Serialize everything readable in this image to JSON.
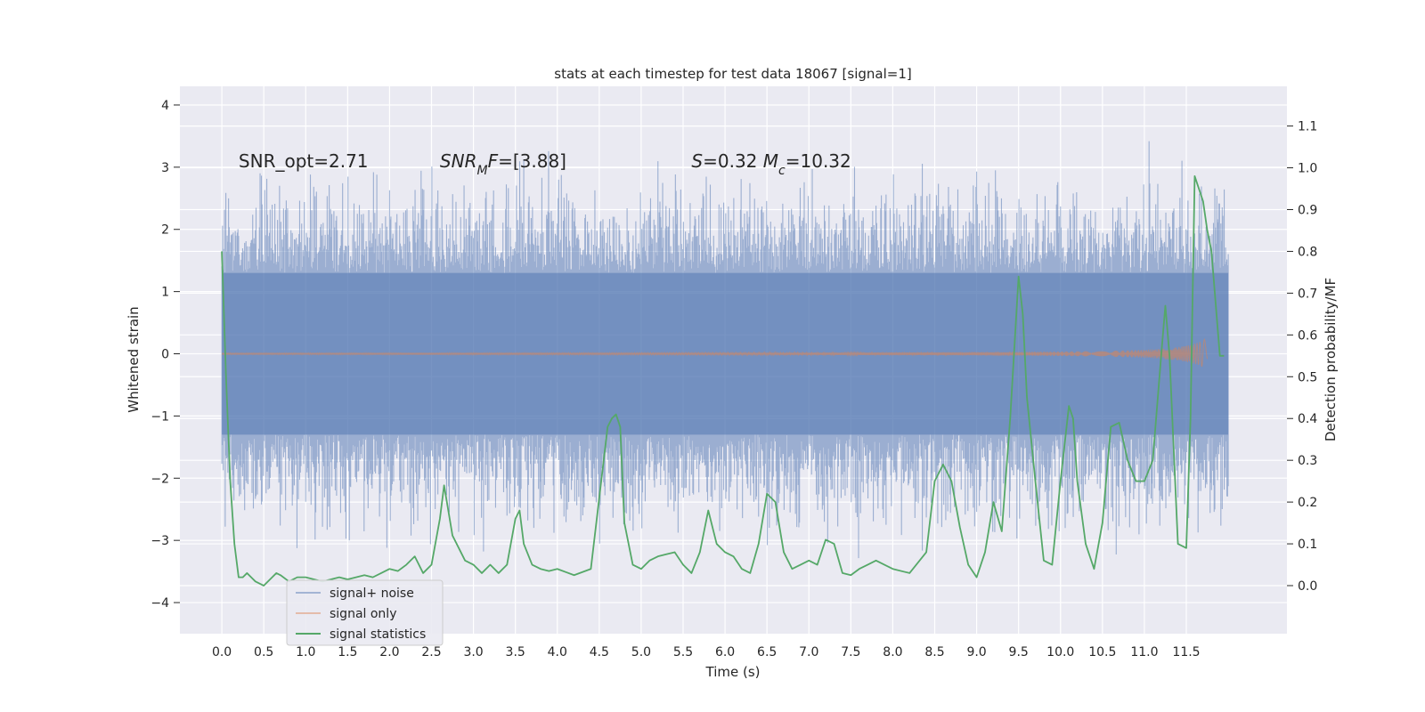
{
  "chart_data": {
    "type": "line",
    "title": "stats at each timestep for test data 18067 [signal=1]",
    "xlabel": "Time (s)",
    "ylabel": "Whitened strain",
    "y2label": "Detection probability/MF",
    "xlim": [
      -0.5,
      12.7
    ],
    "ylim": [
      -4.5,
      4.3
    ],
    "y2lim": [
      -0.115,
      1.195
    ],
    "xticks": [
      0.0,
      0.5,
      1.0,
      1.5,
      2.0,
      2.5,
      3.0,
      3.5,
      4.0,
      4.5,
      5.0,
      5.5,
      6.0,
      6.5,
      7.0,
      7.5,
      8.0,
      8.5,
      9.0,
      9.5,
      10.0,
      10.5,
      11.0,
      11.5
    ],
    "xtick_labels": [
      "0.0",
      "0.5",
      "1.0",
      "1.5",
      "2.0",
      "2.5",
      "3.0",
      "3.5",
      "4.0",
      "4.5",
      "5.0",
      "5.5",
      "6.0",
      "6.5",
      "7.0",
      "7.5",
      "8.0",
      "8.5",
      "9.0",
      "9.5",
      "10.0",
      "10.5",
      "11.0",
      "11.5"
    ],
    "yticks": [
      -4,
      -3,
      -2,
      -1,
      0,
      1,
      2,
      3,
      4
    ],
    "ytick_labels": [
      "−4",
      "−3",
      "−2",
      "−1",
      "0",
      "1",
      "2",
      "3",
      "4"
    ],
    "y2ticks": [
      0.0,
      0.1,
      0.2,
      0.3,
      0.4,
      0.5,
      0.6,
      0.7,
      0.8,
      0.9,
      1.0,
      1.1
    ],
    "y2tick_labels": [
      "0.0",
      "0.1",
      "0.2",
      "0.3",
      "0.4",
      "0.5",
      "0.6",
      "0.7",
      "0.8",
      "0.9",
      "1.0",
      "1.1"
    ],
    "grid": true,
    "legend_position": "lower-left",
    "annotations": [
      {
        "parts": [
          {
            "t": "SNR_opt=2.71",
            "italic": false
          }
        ],
        "x": 0.2,
        "y": 3.1
      },
      {
        "parts": [
          {
            "t": "SNR",
            "italic": true
          },
          {
            "t": "M",
            "italic": true,
            "sub": true
          },
          {
            "t": "F",
            "italic": true
          },
          {
            "t": "=[3.88]",
            "italic": false
          }
        ],
        "x": 2.6,
        "y": 3.1
      },
      {
        "parts": [
          {
            "t": "S",
            "italic": true
          },
          {
            "t": "=0.32   ",
            "italic": false
          },
          {
            "t": "M",
            "italic": true
          },
          {
            "t": "c",
            "italic": true,
            "sub": true
          },
          {
            "t": "=10.32",
            "italic": false
          }
        ],
        "x": 5.6,
        "y": 3.1
      }
    ],
    "series": [
      {
        "name": "signal+ noise",
        "color": "#4c72b0",
        "axis": "left",
        "kind": "noise-band",
        "x_range": [
          0.0,
          12.0
        ],
        "core_envelope": [
          -1.3,
          1.3
        ],
        "max": 3.95,
        "min": -4.1
      },
      {
        "name": "signal only",
        "color": "#dd8452",
        "axis": "left",
        "kind": "chirp",
        "x_range": [
          0.0,
          11.75
        ],
        "peak_amplitude": 0.42,
        "peak_time": 11.7
      },
      {
        "name": "signal statistics",
        "color": "#55a868",
        "axis": "right",
        "x": [
          0.0,
          0.05,
          0.1,
          0.15,
          0.2,
          0.25,
          0.3,
          0.35,
          0.4,
          0.5,
          0.6,
          0.65,
          0.7,
          0.8,
          0.9,
          1.0,
          1.1,
          1.2,
          1.3,
          1.4,
          1.5,
          1.6,
          1.7,
          1.8,
          1.9,
          2.0,
          2.1,
          2.2,
          2.3,
          2.4,
          2.5,
          2.6,
          2.65,
          2.7,
          2.75,
          2.8,
          2.9,
          3.0,
          3.1,
          3.2,
          3.3,
          3.4,
          3.5,
          3.55,
          3.6,
          3.7,
          3.8,
          3.9,
          4.0,
          4.2,
          4.4,
          4.6,
          4.65,
          4.7,
          4.75,
          4.8,
          4.9,
          5.0,
          5.1,
          5.2,
          5.3,
          5.4,
          5.5,
          5.6,
          5.7,
          5.8,
          5.9,
          6.0,
          6.1,
          6.2,
          6.3,
          6.4,
          6.5,
          6.6,
          6.7,
          6.8,
          6.9,
          7.0,
          7.1,
          7.2,
          7.3,
          7.4,
          7.5,
          7.6,
          7.7,
          7.8,
          8.0,
          8.2,
          8.4,
          8.5,
          8.6,
          8.7,
          8.8,
          8.9,
          9.0,
          9.1,
          9.2,
          9.3,
          9.4,
          9.5,
          9.55,
          9.6,
          9.7,
          9.8,
          9.9,
          10.0,
          10.1,
          10.15,
          10.2,
          10.3,
          10.4,
          10.5,
          10.6,
          10.7,
          10.8,
          10.9,
          11.0,
          11.1,
          11.2,
          11.25,
          11.3,
          11.4,
          11.5,
          11.55,
          11.6,
          11.7,
          11.75,
          11.8,
          11.9,
          11.95
        ],
        "values": [
          0.8,
          0.5,
          0.25,
          0.1,
          0.02,
          0.02,
          0.03,
          0.02,
          0.01,
          0.0,
          0.02,
          0.03,
          0.025,
          0.01,
          0.02,
          0.02,
          0.015,
          0.01,
          0.015,
          0.02,
          0.015,
          0.02,
          0.025,
          0.02,
          0.03,
          0.04,
          0.035,
          0.05,
          0.07,
          0.03,
          0.05,
          0.16,
          0.24,
          0.18,
          0.12,
          0.1,
          0.06,
          0.05,
          0.03,
          0.05,
          0.03,
          0.05,
          0.16,
          0.18,
          0.1,
          0.05,
          0.04,
          0.035,
          0.04,
          0.025,
          0.04,
          0.38,
          0.4,
          0.41,
          0.38,
          0.15,
          0.05,
          0.04,
          0.06,
          0.07,
          0.075,
          0.08,
          0.05,
          0.03,
          0.08,
          0.18,
          0.1,
          0.08,
          0.07,
          0.04,
          0.03,
          0.1,
          0.22,
          0.2,
          0.08,
          0.04,
          0.05,
          0.06,
          0.05,
          0.11,
          0.1,
          0.03,
          0.025,
          0.04,
          0.05,
          0.06,
          0.04,
          0.03,
          0.08,
          0.25,
          0.29,
          0.25,
          0.14,
          0.05,
          0.02,
          0.08,
          0.2,
          0.13,
          0.4,
          0.74,
          0.65,
          0.45,
          0.25,
          0.06,
          0.05,
          0.25,
          0.43,
          0.4,
          0.25,
          0.1,
          0.04,
          0.15,
          0.38,
          0.39,
          0.3,
          0.25,
          0.25,
          0.3,
          0.55,
          0.67,
          0.55,
          0.1,
          0.09,
          0.4,
          0.98,
          0.92,
          0.85,
          0.8,
          0.55,
          0.55
        ]
      }
    ]
  }
}
